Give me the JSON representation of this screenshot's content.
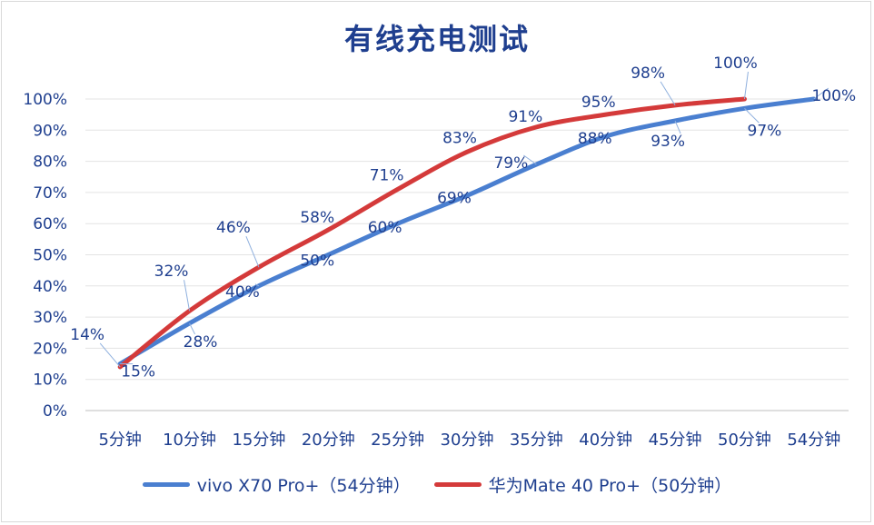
{
  "chart_data": {
    "type": "line",
    "title": "有线充电测试",
    "categories": [
      "5分钟",
      "10分钟",
      "15分钟",
      "20分钟",
      "25分钟",
      "30分钟",
      "35分钟",
      "40分钟",
      "45分钟",
      "50分钟",
      "54分钟"
    ],
    "y_ticks": [
      "0%",
      "10%",
      "20%",
      "30%",
      "40%",
      "50%",
      "60%",
      "70%",
      "80%",
      "90%",
      "100%"
    ],
    "ylim": [
      0,
      100
    ],
    "grid": true,
    "legend_position": "bottom",
    "series": [
      {
        "name": "vivo X70 Pro+（54分钟）",
        "color": "#4a7fd0",
        "values": [
          15,
          28,
          40,
          50,
          60,
          69,
          79,
          88,
          93,
          97,
          100
        ],
        "labels": [
          "15%",
          "28%",
          "40%",
          "50%",
          "60%",
          "69%",
          "79%",
          "88%",
          "93%",
          "97%",
          "100%"
        ]
      },
      {
        "name": "华为Mate 40 Pro+（50分钟）",
        "color": "#d43a3a",
        "values": [
          14,
          32,
          46,
          58,
          71,
          83,
          91,
          95,
          98,
          100,
          null
        ],
        "labels": [
          "14%",
          "32%",
          "46%",
          "58%",
          "71%",
          "83%",
          "91%",
          "95%",
          "98%",
          "100%",
          ""
        ]
      }
    ]
  }
}
